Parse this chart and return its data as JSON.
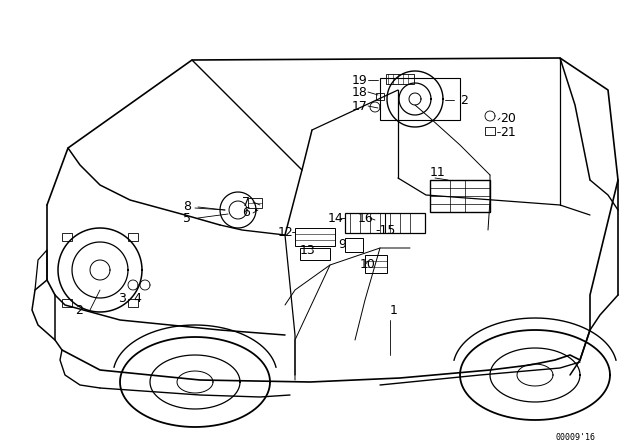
{
  "background_color": "#ffffff",
  "line_color": "#000000",
  "figure_width": 6.4,
  "figure_height": 4.48,
  "dpi": 100,
  "watermark": "00009’16"
}
